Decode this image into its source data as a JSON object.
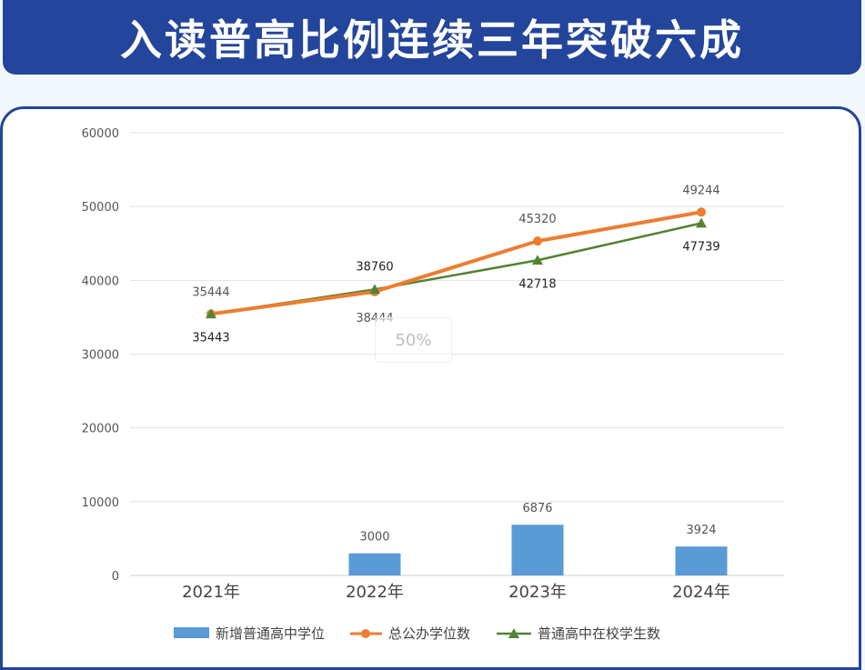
{
  "header": {
    "title": "入读普高比例连续三年突破六成"
  },
  "overlay": {
    "zoom_label": "50%"
  },
  "colors": {
    "header_bg": "#23459b",
    "bar": "#5b9bd5",
    "orange": "#ed7d31",
    "green": "#548235"
  },
  "chart_data": {
    "type": "bar",
    "categories": [
      "2021年",
      "2022年",
      "2023年",
      "2024年"
    ],
    "ylim": [
      0,
      60000
    ],
    "yticks": [
      0,
      10000,
      20000,
      30000,
      40000,
      50000,
      60000
    ],
    "grid": true,
    "legend_position": "bottom",
    "series": [
      {
        "name": "新增普通高中学位",
        "kind": "bar",
        "values": [
          null,
          3000,
          6876,
          3924
        ],
        "labels": [
          "",
          "3000",
          "6876",
          "3924"
        ]
      },
      {
        "name": "总公办学位数",
        "kind": "line",
        "marker": "circle",
        "values": [
          35444,
          38444,
          45320,
          49244
        ],
        "labels": [
          "35444",
          "38444",
          "45320",
          "49244"
        ]
      },
      {
        "name": "普通高中在校学生数",
        "kind": "line",
        "marker": "triangle",
        "values": [
          35443,
          38760,
          42718,
          47739
        ],
        "labels": [
          "35443",
          "38760",
          "42718",
          "47739"
        ]
      }
    ]
  }
}
